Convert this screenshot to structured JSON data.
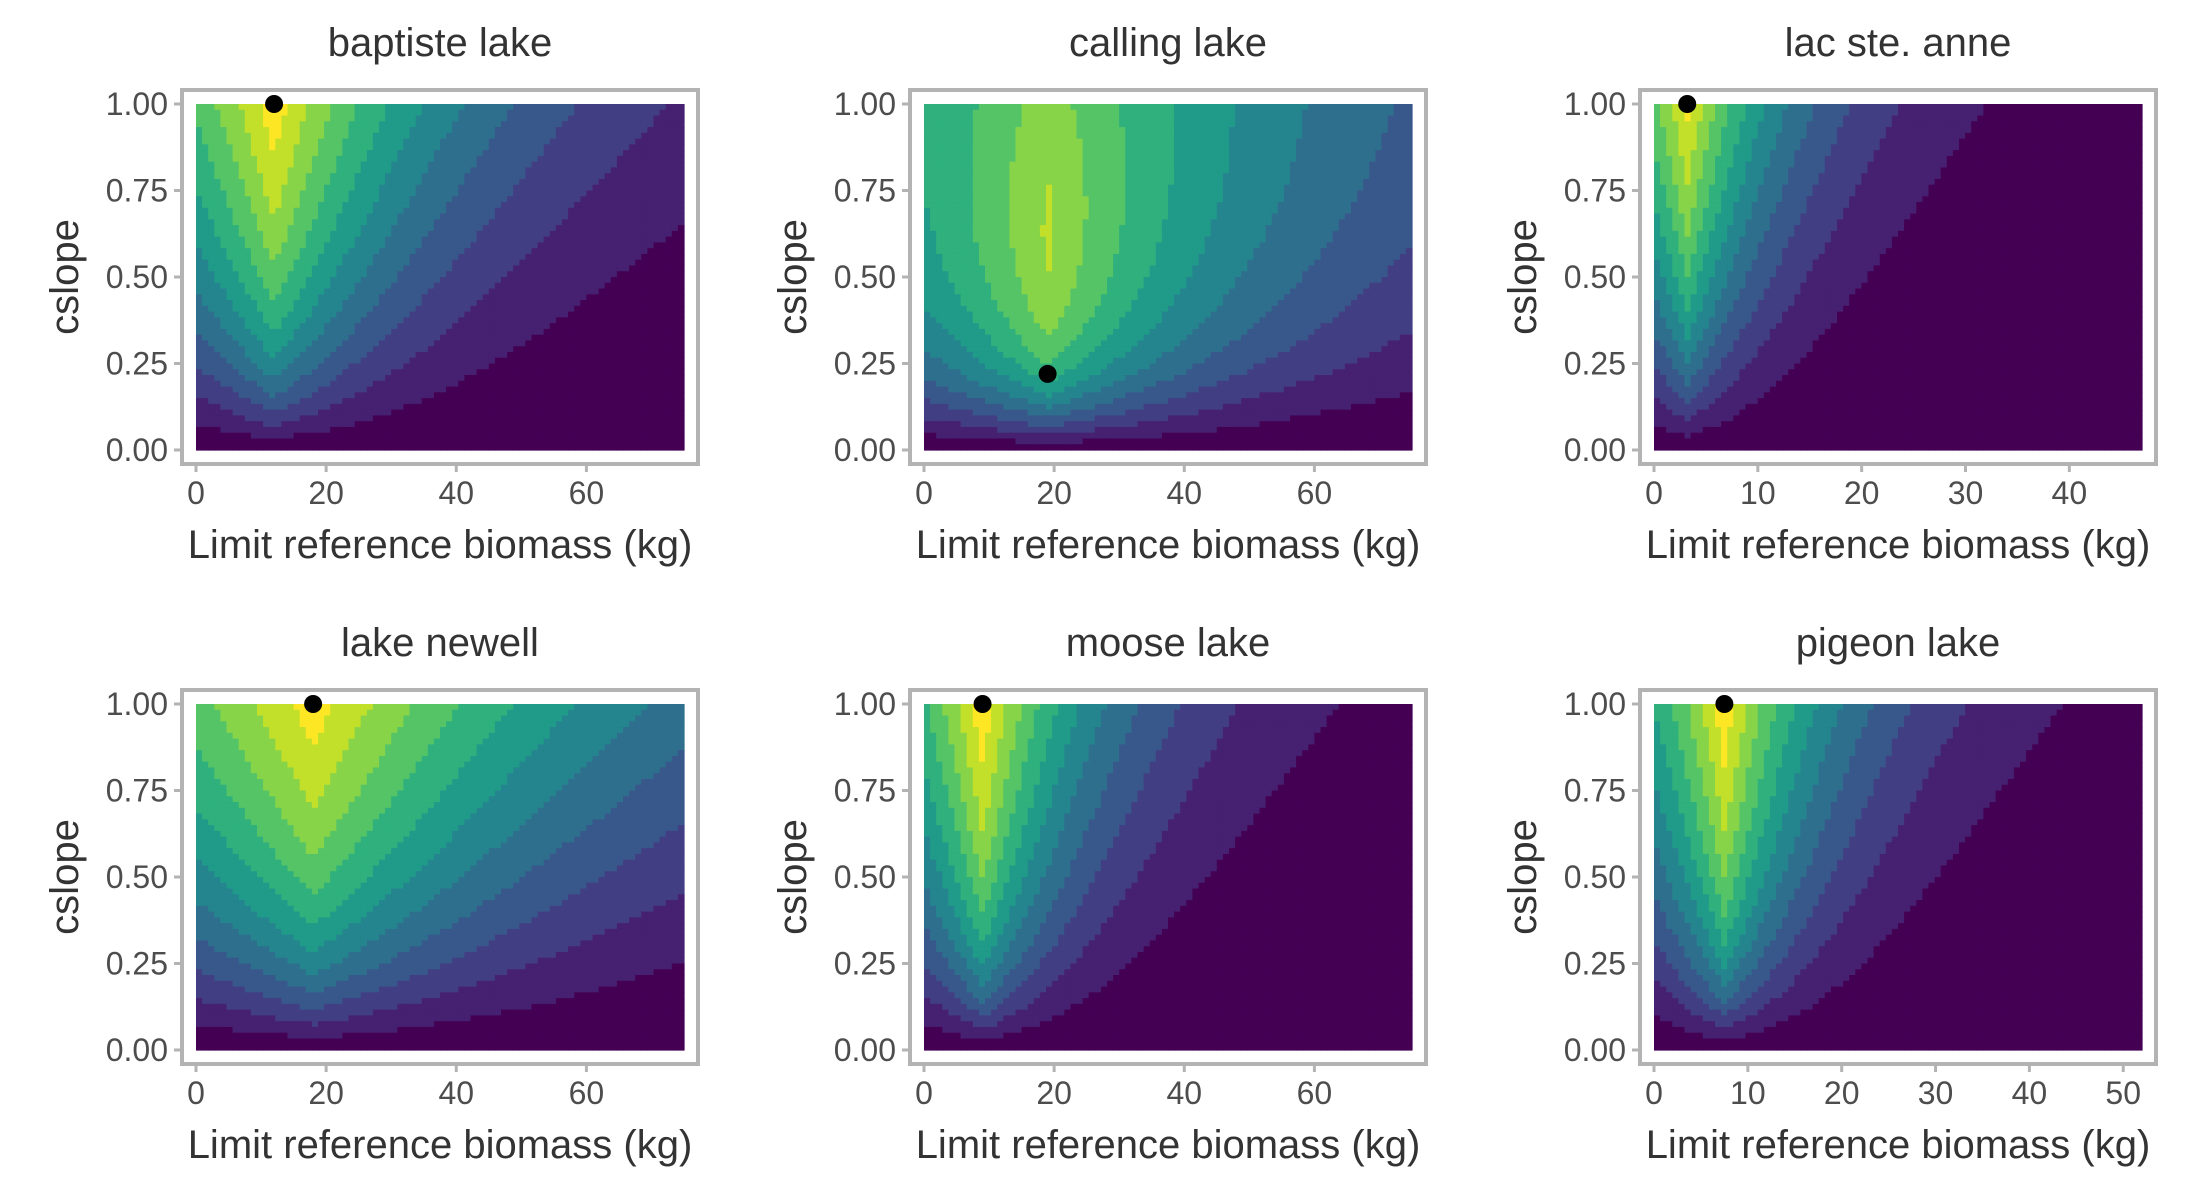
{
  "figure": {
    "colors": {
      "frame": "#b3b3b3",
      "tick_text": "#4d4d4d",
      "title_text": "#333333",
      "optimum_point": "#000000",
      "palette": "viridis"
    }
  },
  "chart_data": [
    {
      "type": "heatmap",
      "title": "baptiste lake",
      "xlabel": "Limit reference biomass (kg)",
      "ylabel": "cslope",
      "xlim": [
        0,
        75
      ],
      "ylim": [
        0,
        1
      ],
      "xticks": [
        0,
        20,
        40,
        60
      ],
      "yticks": [
        "0.00",
        "0.25",
        "0.50",
        "0.75",
        "1.00"
      ],
      "optimum": {
        "x": 12,
        "y": 1.0
      },
      "surface": {
        "contour_levels": 12,
        "peak_height": 0.28,
        "peak_width": 0.6,
        "decay_k": 0.55
      }
    },
    {
      "type": "heatmap",
      "title": "calling lake",
      "xlabel": "Limit reference biomass (kg)",
      "ylabel": "cslope",
      "xlim": [
        0,
        75
      ],
      "ylim": [
        0,
        1
      ],
      "xticks": [
        0,
        20,
        40,
        60
      ],
      "yticks": [
        "0.00",
        "0.25",
        "0.50",
        "0.75",
        "1.00"
      ],
      "optimum": {
        "x": 19,
        "y": 0.22
      },
      "surface": {
        "contour_levels": 12,
        "peak_height": 0.22,
        "peak_width": 0.7,
        "decay_k": 0.35
      }
    },
    {
      "type": "heatmap",
      "title": "lac ste. anne",
      "xlabel": "Limit reference biomass (kg)",
      "ylabel": "cslope",
      "xlim": [
        0,
        47
      ],
      "ylim": [
        0,
        1
      ],
      "xticks": [
        0,
        10,
        20,
        30,
        40
      ],
      "yticks": [
        "0.00",
        "0.25",
        "0.50",
        "0.75",
        "1.00"
      ],
      "optimum": {
        "x": 3.2,
        "y": 1.0
      },
      "surface": {
        "contour_levels": 12,
        "peak_height": 0.35,
        "peak_width": 0.6,
        "decay_k": 1.0
      }
    },
    {
      "type": "heatmap",
      "title": "lake newell",
      "xlabel": "Limit reference biomass (kg)",
      "ylabel": "cslope",
      "xlim": [
        0,
        75
      ],
      "ylim": [
        0,
        1
      ],
      "xticks": [
        0,
        20,
        40,
        60
      ],
      "yticks": [
        "0.00",
        "0.25",
        "0.50",
        "0.75",
        "1.00"
      ],
      "optimum": {
        "x": 18,
        "y": 1.0
      },
      "surface": {
        "contour_levels": 12,
        "peak_height": 0.3,
        "peak_width": 0.7,
        "decay_k": 0.35
      }
    },
    {
      "type": "heatmap",
      "title": "moose lake",
      "xlabel": "Limit reference biomass (kg)",
      "ylabel": "cslope",
      "xlim": [
        0,
        75
      ],
      "ylim": [
        0,
        1
      ],
      "xticks": [
        0,
        20,
        40,
        60
      ],
      "yticks": [
        "0.00",
        "0.25",
        "0.50",
        "0.75",
        "1.00"
      ],
      "optimum": {
        "x": 9,
        "y": 1.0
      },
      "surface": {
        "contour_levels": 12,
        "peak_height": 0.25,
        "peak_width": 0.6,
        "decay_k": 0.85
      }
    },
    {
      "type": "heatmap",
      "title": "pigeon lake",
      "xlabel": "Limit reference biomass (kg)",
      "ylabel": "cslope",
      "xlim": [
        0,
        52
      ],
      "ylim": [
        0,
        1
      ],
      "xticks": [
        0,
        10,
        20,
        30,
        40,
        50
      ],
      "yticks": [
        "0.00",
        "0.25",
        "0.50",
        "0.75",
        "1.00"
      ],
      "optimum": {
        "x": 7.5,
        "y": 1.0
      },
      "surface": {
        "contour_levels": 12,
        "peak_height": 0.25,
        "peak_width": 0.6,
        "decay_k": 0.9
      }
    }
  ]
}
